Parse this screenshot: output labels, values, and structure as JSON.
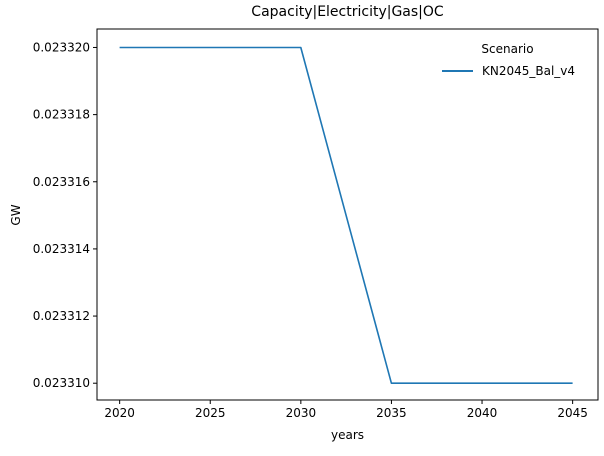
{
  "chart_data": {
    "type": "line",
    "title": "Capacity|Electricity|Gas|OC",
    "xlabel": "years",
    "ylabel": "GW",
    "x": [
      2020,
      2025,
      2030,
      2035,
      2040,
      2045
    ],
    "series": [
      {
        "name": "KN2045_Bal_v4",
        "color": "#1f77b4",
        "values": [
          0.02332,
          0.02332,
          0.02332,
          0.02331,
          0.02331,
          0.02331
        ]
      }
    ],
    "legend": {
      "title": "Scenario",
      "position": "upper-right",
      "frame": false
    },
    "xticks": [
      2020,
      2025,
      2030,
      2035,
      2040,
      2045
    ],
    "xtick_labels": [
      "2020",
      "2025",
      "2030",
      "2035",
      "2040",
      "2045"
    ],
    "yticks": [
      0.02331,
      0.023312,
      0.023314,
      0.023316,
      0.023318,
      0.02332
    ],
    "ytick_labels": [
      "0.023310",
      "0.023312",
      "0.023314",
      "0.023316",
      "0.023318",
      "0.023320"
    ],
    "xlim": [
      2018.75,
      2046.4
    ],
    "ylim": [
      0.0233095,
      0.02332055
    ],
    "grid": false,
    "axis_color": "#000000",
    "background": "#ffffff"
  }
}
